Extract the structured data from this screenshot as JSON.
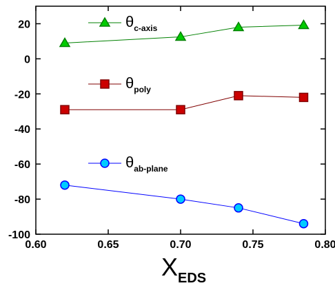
{
  "chart_data": {
    "type": "line",
    "x_label": "XEDS",
    "xlim": [
      0.6,
      0.8
    ],
    "xticks": [
      {
        "value": 0.6,
        "label": "0.60"
      },
      {
        "value": 0.65,
        "label": "0.65"
      },
      {
        "value": 0.7,
        "label": "0.70"
      },
      {
        "value": 0.75,
        "label": "0.75"
      },
      {
        "value": 0.8,
        "label": "0.80"
      }
    ],
    "ylim": [
      -100,
      30
    ],
    "yticks": [
      -100,
      -80,
      -60,
      -40,
      -20,
      0,
      20
    ],
    "series": [
      {
        "name": "θc-axis",
        "color": "#00cc00",
        "line_color": "#008000",
        "marker": "triangle",
        "x": [
          0.62,
          0.7,
          0.74,
          0.785
        ],
        "values": [
          9,
          12.5,
          18,
          19.2
        ]
      },
      {
        "name": "θpoly",
        "color": "#cc0000",
        "line_color": "#800000",
        "marker": "square",
        "x": [
          0.62,
          0.7,
          0.74,
          0.785
        ],
        "values": [
          -29,
          -29,
          -21,
          -22
        ]
      },
      {
        "name": "θab-plane",
        "color": "#00ccff",
        "line_color": "#0000ff",
        "marker": "circle",
        "x": [
          0.62,
          0.7,
          0.74,
          0.785
        ],
        "values": [
          -72,
          -80,
          -85,
          -94
        ]
      }
    ]
  }
}
